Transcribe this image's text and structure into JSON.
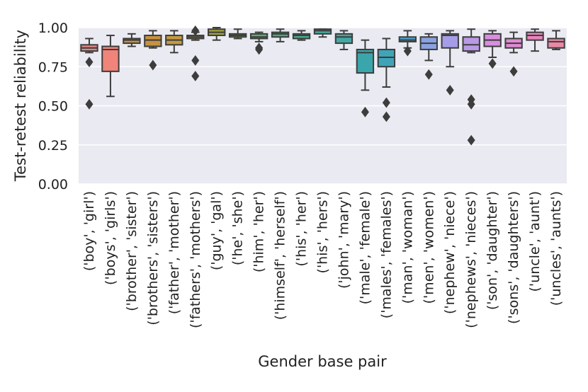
{
  "chart_data": {
    "type": "boxplot",
    "title": "",
    "xlabel": "Gender base pair",
    "ylabel": "Test-retest reliability",
    "ylim": [
      0,
      1.0
    ],
    "yticks": [
      0.0,
      0.25,
      0.5,
      0.75,
      1.0
    ],
    "ytick_labels": [
      "0.00",
      "0.25",
      "0.50",
      "0.75",
      "1.00"
    ],
    "grid": true,
    "categories": [
      "('boy', 'girl')",
      "('boys', 'girls')",
      "('brother', 'sister')",
      "('brothers', 'sisters')",
      "('father', 'mother')",
      "('fathers', 'mothers')",
      "('guy', 'gal')",
      "('he', 'she')",
      "('him', 'her')",
      "('himself', 'herself')",
      "('his', 'her')",
      "('his', 'hers')",
      "('john', 'mary')",
      "('male', 'female')",
      "('males', 'females')",
      "('man', 'woman')",
      "('men', 'women')",
      "('nephew', 'niece')",
      "('nephews', 'nieces')",
      "('son', 'daughter')",
      "('sons', 'daughters')",
      "('uncle', 'aunt')",
      "('uncles', 'aunts')"
    ],
    "boxes": [
      {
        "min": 0.84,
        "q1": 0.85,
        "median": 0.87,
        "q3": 0.89,
        "max": 0.93,
        "outliers": [
          0.78,
          0.51
        ],
        "color": "#df8884"
      },
      {
        "min": 0.56,
        "q1": 0.72,
        "median": 0.86,
        "q3": 0.88,
        "max": 0.95,
        "outliers": [],
        "color": "#f0847a"
      },
      {
        "min": 0.88,
        "q1": 0.9,
        "median": 0.92,
        "q3": 0.93,
        "max": 0.96,
        "outliers": [],
        "color": "#c8903e"
      },
      {
        "min": 0.87,
        "q1": 0.88,
        "median": 0.92,
        "q3": 0.95,
        "max": 0.98,
        "outliers": [
          0.76
        ],
        "color": "#c7913e"
      },
      {
        "min": 0.84,
        "q1": 0.89,
        "median": 0.92,
        "q3": 0.95,
        "max": 0.98,
        "outliers": [],
        "color": "#c49a40"
      },
      {
        "min": 0.92,
        "q1": 0.93,
        "median": 0.94,
        "q3": 0.95,
        "max": 0.97,
        "outliers": [
          0.98,
          0.79,
          0.69
        ],
        "color": "#b9a040"
      },
      {
        "min": 0.92,
        "q1": 0.95,
        "median": 0.97,
        "q3": 0.99,
        "max": 1.0,
        "outliers": [],
        "color": "#9fa13a"
      },
      {
        "min": 0.93,
        "q1": 0.94,
        "median": 0.95,
        "q3": 0.96,
        "max": 0.99,
        "outliers": [],
        "color": "#71aa48"
      },
      {
        "min": 0.91,
        "q1": 0.93,
        "median": 0.94,
        "q3": 0.96,
        "max": 0.97,
        "outliers": [
          0.87,
          0.86
        ],
        "color": "#5cae6a"
      },
      {
        "min": 0.91,
        "q1": 0.94,
        "median": 0.96,
        "q3": 0.97,
        "max": 0.99,
        "outliers": [],
        "color": "#4caa78"
      },
      {
        "min": 0.92,
        "q1": 0.93,
        "median": 0.95,
        "q3": 0.96,
        "max": 0.98,
        "outliers": [],
        "color": "#46ab8c"
      },
      {
        "min": 0.94,
        "q1": 0.96,
        "median": 0.98,
        "q3": 0.99,
        "max": 0.99,
        "outliers": [],
        "color": "#45aa9c"
      },
      {
        "min": 0.86,
        "q1": 0.9,
        "median": 0.94,
        "q3": 0.96,
        "max": 0.98,
        "outliers": [],
        "color": "#44a8a4"
      },
      {
        "min": 0.6,
        "q1": 0.71,
        "median": 0.84,
        "q3": 0.86,
        "max": 0.92,
        "outliers": [
          0.46
        ],
        "color": "#3aa6ac"
      },
      {
        "min": 0.62,
        "q1": 0.75,
        "median": 0.81,
        "q3": 0.86,
        "max": 0.93,
        "outliers": [
          0.52,
          0.43
        ],
        "color": "#40a4b8"
      },
      {
        "min": 0.87,
        "q1": 0.91,
        "median": 0.92,
        "q3": 0.94,
        "max": 0.98,
        "outliers": [
          0.85
        ],
        "color": "#4aa1cc"
      },
      {
        "min": 0.79,
        "q1": 0.86,
        "median": 0.9,
        "q3": 0.94,
        "max": 0.96,
        "outliers": [
          0.7
        ],
        "color": "#8aa2e0"
      },
      {
        "min": 0.75,
        "q1": 0.87,
        "median": 0.95,
        "q3": 0.96,
        "max": 0.98,
        "outliers": [
          0.6
        ],
        "color": "#a69de8"
      },
      {
        "min": 0.84,
        "q1": 0.85,
        "median": 0.89,
        "q3": 0.94,
        "max": 0.99,
        "outliers": [
          0.54,
          0.51,
          0.28
        ],
        "color": "#b99ae6"
      },
      {
        "min": 0.81,
        "q1": 0.88,
        "median": 0.92,
        "q3": 0.96,
        "max": 0.98,
        "outliers": [
          0.77
        ],
        "color": "#da8ee0"
      },
      {
        "min": 0.84,
        "q1": 0.87,
        "median": 0.9,
        "q3": 0.93,
        "max": 0.97,
        "outliers": [
          0.72
        ],
        "color": "#e08ad2"
      },
      {
        "min": 0.85,
        "q1": 0.92,
        "median": 0.95,
        "q3": 0.97,
        "max": 0.99,
        "outliers": [],
        "color": "#ea85bc"
      },
      {
        "min": 0.86,
        "q1": 0.87,
        "median": 0.91,
        "q3": 0.93,
        "max": 0.98,
        "outliers": [],
        "color": "#e889a6"
      }
    ]
  }
}
